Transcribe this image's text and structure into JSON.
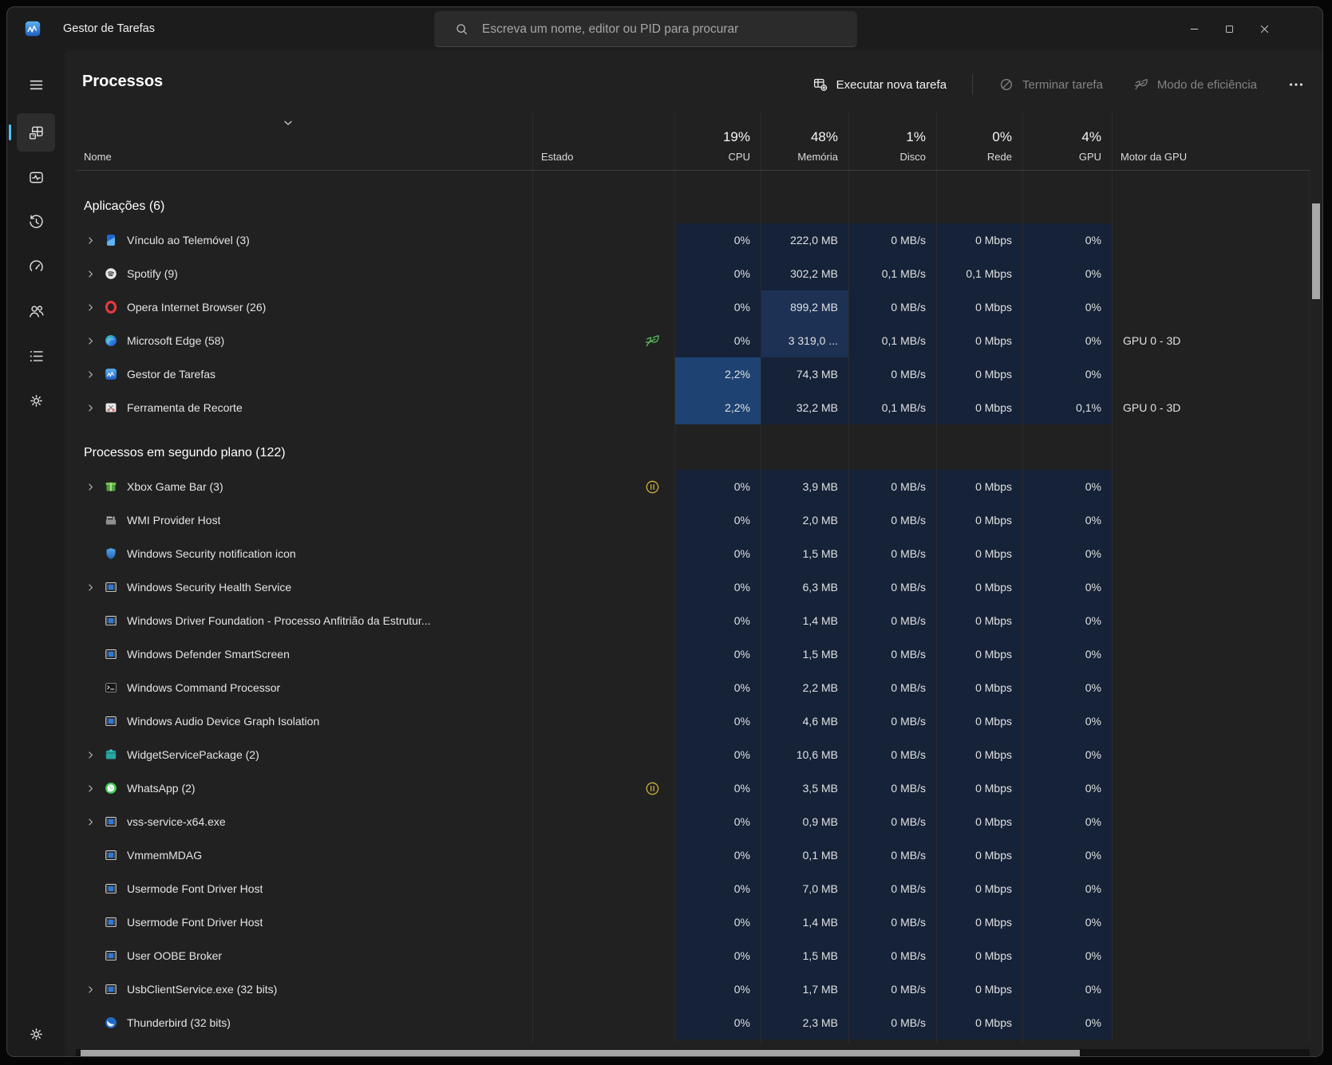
{
  "window": {
    "title": "Gestor de Tarefas",
    "controls": [
      {
        "id": "minimize",
        "icon": "minimize-icon"
      },
      {
        "id": "maximize",
        "icon": "maximize-icon"
      },
      {
        "id": "close",
        "icon": "close-icon"
      }
    ]
  },
  "search": {
    "placeholder": "Escreva um nome, editor ou PID para procurar",
    "icon": "search-icon"
  },
  "sidebar": {
    "menu": {
      "id": "menu",
      "icon": "hamburger-icon"
    },
    "items": [
      {
        "id": "processes",
        "icon": "processes-icon",
        "selected": true
      },
      {
        "id": "performance",
        "icon": "performance-icon",
        "selected": false
      },
      {
        "id": "app-history",
        "icon": "history-icon",
        "selected": false
      },
      {
        "id": "startup-apps",
        "icon": "startup-icon",
        "selected": false
      },
      {
        "id": "users",
        "icon": "users-icon",
        "selected": false
      },
      {
        "id": "details",
        "icon": "details-icon",
        "selected": false
      },
      {
        "id": "services",
        "icon": "services-icon",
        "selected": false
      }
    ],
    "bottom": {
      "id": "settings",
      "icon": "settings-icon"
    }
  },
  "page": {
    "title": "Processos",
    "toolbar": [
      {
        "id": "run-new-task",
        "label": "Executar nova tarefa",
        "icon": "new-task-icon",
        "enabled": true
      },
      {
        "id": "end-task",
        "label": "Terminar tarefa",
        "icon": "end-task-icon",
        "enabled": false
      },
      {
        "id": "efficiency-mode",
        "label": "Modo de eficiência",
        "icon": "leaf-icon",
        "enabled": false
      }
    ],
    "more": {
      "id": "more-options",
      "icon": "more-icon"
    }
  },
  "colors": {
    "accent": "#4cc2ff",
    "heat_low": "#152238",
    "heat_mid": "#1c3154",
    "heat_high": "#1e4372",
    "leaf_green": "#58bd5c",
    "pause_yellow": "#cdb23c"
  },
  "table": {
    "columns": [
      {
        "id": "name",
        "label": "Nome",
        "sorted": true
      },
      {
        "id": "status",
        "label": "Estado"
      },
      {
        "id": "cpu",
        "label": "CPU",
        "summary": "19%"
      },
      {
        "id": "memory",
        "label": "Memória",
        "summary": "48%"
      },
      {
        "id": "disk",
        "label": "Disco",
        "summary": "1%"
      },
      {
        "id": "network",
        "label": "Rede",
        "summary": "0%"
      },
      {
        "id": "gpu",
        "label": "GPU",
        "summary": "4%"
      },
      {
        "id": "gpu_engine",
        "label": "Motor da GPU"
      }
    ],
    "groups": [
      {
        "label": "Aplicações (6)",
        "rows": [
          {
            "name": "Vínculo ao Telemóvel (3)",
            "icon": "phone-link-icon",
            "expandable": true,
            "status_icon": null,
            "cpu": "0%",
            "memory": "222,0 MB",
            "disk": "0 MB/s",
            "network": "0 Mbps",
            "gpu": "0%",
            "gpu_engine": "",
            "heat": {}
          },
          {
            "name": "Spotify (9)",
            "icon": "spotify-icon",
            "expandable": true,
            "status_icon": null,
            "cpu": "0%",
            "memory": "302,2 MB",
            "disk": "0,1 MB/s",
            "network": "0,1 Mbps",
            "gpu": "0%",
            "gpu_engine": "",
            "heat": {}
          },
          {
            "name": "Opera Internet Browser (26)",
            "icon": "opera-icon",
            "expandable": true,
            "status_icon": null,
            "cpu": "0%",
            "memory": "899,2 MB",
            "disk": "0 MB/s",
            "network": "0 Mbps",
            "gpu": "0%",
            "gpu_engine": "",
            "heat": {
              "memory": 1
            }
          },
          {
            "name": "Microsoft Edge (58)",
            "icon": "edge-icon",
            "expandable": true,
            "status_icon": "leaf-icon",
            "cpu": "0%",
            "memory": "3 319,0 ...",
            "disk": "0,1 MB/s",
            "network": "0 Mbps",
            "gpu": "0%",
            "gpu_engine": "GPU 0 - 3D",
            "heat": {
              "memory": 1
            }
          },
          {
            "name": "Gestor de Tarefas",
            "icon": "taskmgr-icon",
            "expandable": true,
            "status_icon": null,
            "cpu": "2,2%",
            "memory": "74,3 MB",
            "disk": "0 MB/s",
            "network": "0 Mbps",
            "gpu": "0%",
            "gpu_engine": "",
            "heat": {
              "cpu": 2
            }
          },
          {
            "name": "Ferramenta de Recorte",
            "icon": "snip-icon",
            "expandable": true,
            "status_icon": null,
            "cpu": "2,2%",
            "memory": "32,2 MB",
            "disk": "0,1 MB/s",
            "network": "0 Mbps",
            "gpu": "0,1%",
            "gpu_engine": "GPU 0 - 3D",
            "heat": {
              "cpu": 2
            }
          }
        ]
      },
      {
        "label": "Processos em segundo plano (122)",
        "rows": [
          {
            "name": "Xbox Game Bar (3)",
            "icon": "xbox-icon",
            "expandable": true,
            "status_icon": "pause-icon",
            "cpu": "0%",
            "memory": "3,9 MB",
            "disk": "0 MB/s",
            "network": "0 Mbps",
            "gpu": "0%",
            "gpu_engine": "",
            "heat": {}
          },
          {
            "name": "WMI Provider Host",
            "icon": "wmi-icon",
            "expandable": false,
            "status_icon": null,
            "cpu": "0%",
            "memory": "2,0 MB",
            "disk": "0 MB/s",
            "network": "0 Mbps",
            "gpu": "0%",
            "gpu_engine": "",
            "heat": {}
          },
          {
            "name": "Windows Security notification icon",
            "icon": "shield-icon",
            "expandable": false,
            "status_icon": null,
            "cpu": "0%",
            "memory": "1,5 MB",
            "disk": "0 MB/s",
            "network": "0 Mbps",
            "gpu": "0%",
            "gpu_engine": "",
            "heat": {}
          },
          {
            "name": "Windows Security Health Service",
            "icon": "window-icon",
            "expandable": true,
            "status_icon": null,
            "cpu": "0%",
            "memory": "6,3 MB",
            "disk": "0 MB/s",
            "network": "0 Mbps",
            "gpu": "0%",
            "gpu_engine": "",
            "heat": {}
          },
          {
            "name": "Windows Driver Foundation - Processo Anfitrião da Estrutur...",
            "icon": "window-icon",
            "expandable": false,
            "status_icon": null,
            "cpu": "0%",
            "memory": "1,4 MB",
            "disk": "0 MB/s",
            "network": "0 Mbps",
            "gpu": "0%",
            "gpu_engine": "",
            "heat": {}
          },
          {
            "name": "Windows Defender SmartScreen",
            "icon": "window-icon",
            "expandable": false,
            "status_icon": null,
            "cpu": "0%",
            "memory": "1,5 MB",
            "disk": "0 MB/s",
            "network": "0 Mbps",
            "gpu": "0%",
            "gpu_engine": "",
            "heat": {}
          },
          {
            "name": "Windows Command Processor",
            "icon": "console-icon",
            "expandable": false,
            "status_icon": null,
            "cpu": "0%",
            "memory": "2,2 MB",
            "disk": "0 MB/s",
            "network": "0 Mbps",
            "gpu": "0%",
            "gpu_engine": "",
            "heat": {}
          },
          {
            "name": "Windows Audio Device Graph Isolation",
            "icon": "window-icon",
            "expandable": false,
            "status_icon": null,
            "cpu": "0%",
            "memory": "4,6 MB",
            "disk": "0 MB/s",
            "network": "0 Mbps",
            "gpu": "0%",
            "gpu_engine": "",
            "heat": {}
          },
          {
            "name": "WidgetServicePackage (2)",
            "icon": "widget-icon",
            "expandable": true,
            "status_icon": null,
            "cpu": "0%",
            "memory": "10,6 MB",
            "disk": "0 MB/s",
            "network": "0 Mbps",
            "gpu": "0%",
            "gpu_engine": "",
            "heat": {}
          },
          {
            "name": "WhatsApp (2)",
            "icon": "whatsapp-icon",
            "expandable": true,
            "status_icon": "pause-icon",
            "cpu": "0%",
            "memory": "3,5 MB",
            "disk": "0 MB/s",
            "network": "0 Mbps",
            "gpu": "0%",
            "gpu_engine": "",
            "heat": {}
          },
          {
            "name": "vss-service-x64.exe",
            "icon": "window-icon",
            "expandable": true,
            "status_icon": null,
            "cpu": "0%",
            "memory": "0,9 MB",
            "disk": "0 MB/s",
            "network": "0 Mbps",
            "gpu": "0%",
            "gpu_engine": "",
            "heat": {}
          },
          {
            "name": "VmmemMDAG",
            "icon": "window-icon",
            "expandable": false,
            "status_icon": null,
            "cpu": "0%",
            "memory": "0,1 MB",
            "disk": "0 MB/s",
            "network": "0 Mbps",
            "gpu": "0%",
            "gpu_engine": "",
            "heat": {}
          },
          {
            "name": "Usermode Font Driver Host",
            "icon": "window-icon",
            "expandable": false,
            "status_icon": null,
            "cpu": "0%",
            "memory": "7,0 MB",
            "disk": "0 MB/s",
            "network": "0 Mbps",
            "gpu": "0%",
            "gpu_engine": "",
            "heat": {}
          },
          {
            "name": "Usermode Font Driver Host",
            "icon": "window-icon",
            "expandable": false,
            "status_icon": null,
            "cpu": "0%",
            "memory": "1,4 MB",
            "disk": "0 MB/s",
            "network": "0 Mbps",
            "gpu": "0%",
            "gpu_engine": "",
            "heat": {}
          },
          {
            "name": "User OOBE Broker",
            "icon": "window-icon",
            "expandable": false,
            "status_icon": null,
            "cpu": "0%",
            "memory": "1,5 MB",
            "disk": "0 MB/s",
            "network": "0 Mbps",
            "gpu": "0%",
            "gpu_engine": "",
            "heat": {}
          },
          {
            "name": "UsbClientService.exe (32 bits)",
            "icon": "window-icon",
            "expandable": true,
            "status_icon": null,
            "cpu": "0%",
            "memory": "1,7 MB",
            "disk": "0 MB/s",
            "network": "0 Mbps",
            "gpu": "0%",
            "gpu_engine": "",
            "heat": {}
          },
          {
            "name": "Thunderbird (32 bits)",
            "icon": "thunderbird-icon",
            "expandable": false,
            "status_icon": null,
            "cpu": "0%",
            "memory": "2,3 MB",
            "disk": "0 MB/s",
            "network": "0 Mbps",
            "gpu": "0%",
            "gpu_engine": "",
            "heat": {}
          }
        ]
      }
    ]
  }
}
